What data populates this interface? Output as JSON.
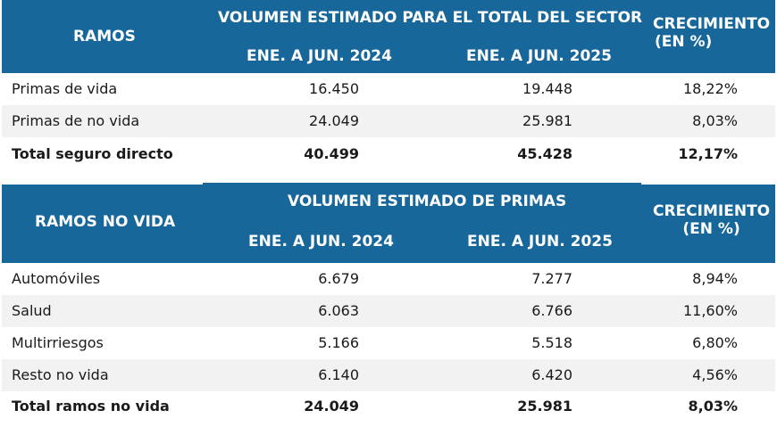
{
  "table1": {
    "ramos_header": "RAMOS",
    "group_header": "VOLUMEN ESTIMADO PARA EL TOTAL DEL SECTOR",
    "col_2024": "ENE. A JUN. 2024",
    "col_2025": "ENE. A JUN. 2025",
    "growth_line1": "CRECIMIENTO",
    "growth_line2": "(EN %)",
    "rows": [
      {
        "label": "Primas de vida",
        "v2024": "16.450",
        "v2025": "19.448",
        "growth": "18,22%"
      },
      {
        "label": "Primas de no vida",
        "v2024": "24.049",
        "v2025": "25.981",
        "growth": "8,03%"
      }
    ],
    "total": {
      "label": "Total seguro directo",
      "v2024": "40.499",
      "v2025": "45.428",
      "growth": "12,17%"
    }
  },
  "table2": {
    "ramos_header": "RAMOS NO VIDA",
    "group_header": "VOLUMEN ESTIMADO DE PRIMAS",
    "col_2024": "ENE. A JUN. 2024",
    "col_2025": "ENE. A JUN. 2025",
    "growth_line1": "CRECIMIENTO",
    "growth_line2": "(EN %)",
    "rows": [
      {
        "label": "Automóviles",
        "v2024": "6.679",
        "v2025": "7.277",
        "growth": "8,94%"
      },
      {
        "label": "Salud",
        "v2024": "6.063",
        "v2025": "6.766",
        "growth": "11,60%"
      },
      {
        "label": "Multirriesgos",
        "v2024": "5.166",
        "v2025": "5.518",
        "growth": "6,80%"
      },
      {
        "label": "Resto no vida",
        "v2024": "6.140",
        "v2025": "6.420",
        "growth": "4,56%"
      }
    ],
    "total": {
      "label": "Total ramos no vida",
      "v2024": "24.049",
      "v2025": "25.981",
      "growth": "8,03%"
    }
  },
  "colors": {
    "header_bg": "#17679b",
    "row_shade": "#f2f2f2"
  }
}
